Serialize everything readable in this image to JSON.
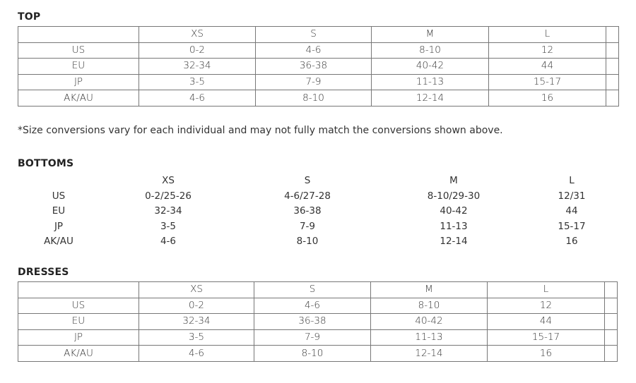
{
  "top": {
    "title": "TOP",
    "headers": [
      "",
      "XS",
      "S",
      "M",
      "L",
      ""
    ],
    "rows": [
      [
        "US",
        "0-2",
        "4-6",
        "8-10",
        "12",
        ""
      ],
      [
        "EU",
        "32-34",
        "36-38",
        "40-42",
        "44",
        ""
      ],
      [
        "JP",
        "3-5",
        "7-9",
        "11-13",
        "15-17",
        ""
      ],
      [
        "AK/AU",
        "4-6",
        "8-10",
        "12-14",
        "16",
        ""
      ]
    ]
  },
  "note": "*Size conversions vary for each individual and may not fully match the conversions shown above.",
  "bottoms": {
    "title": "BOTTOMS",
    "headers": [
      "",
      "XS",
      "S",
      "M",
      "L"
    ],
    "rows": [
      [
        "US",
        "0-2/25-26",
        "4-6/27-28",
        "8-10/29-30",
        "12/31"
      ],
      [
        "EU",
        "32-34",
        "36-38",
        "40-42",
        "44"
      ],
      [
        "JP",
        "3-5",
        "7-9",
        "11-13",
        "15-17"
      ],
      [
        "AK/AU",
        "4-6",
        "8-10",
        "12-14",
        "16"
      ]
    ]
  },
  "dresses": {
    "title": "DRESSES",
    "headers": [
      "",
      "XS",
      "S",
      "M",
      "L",
      ""
    ],
    "rows": [
      [
        "US",
        "0-2",
        "4-6",
        "8-10",
        "12",
        ""
      ],
      [
        "EU",
        "32-34",
        "36-38",
        "40-42",
        "44",
        ""
      ],
      [
        "JP",
        "3-5",
        "7-9",
        "11-13",
        "15-17",
        ""
      ],
      [
        "AK/AU",
        "4-6",
        "8-10",
        "12-14",
        "16",
        ""
      ]
    ]
  }
}
